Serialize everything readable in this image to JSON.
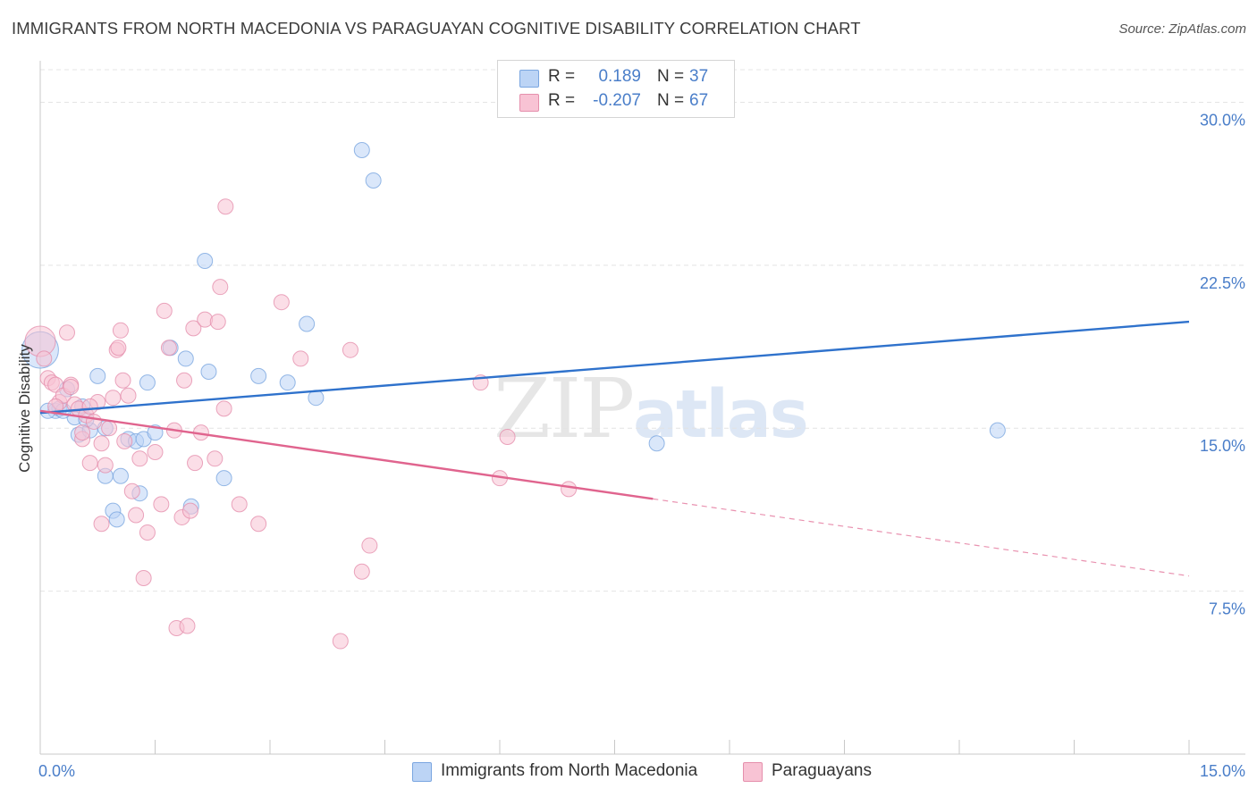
{
  "header": {
    "title": "IMMIGRANTS FROM NORTH MACEDONIA VS PARAGUAYAN COGNITIVE DISABILITY CORRELATION CHART",
    "source": "Source: ZipAtlas.com"
  },
  "watermark": {
    "zip": "ZIP",
    "atlas": "atlas"
  },
  "legend_top": {
    "rows": [
      {
        "r_label": "R =",
        "r_value": "0.189",
        "n_label": "N =",
        "n_value": "37"
      },
      {
        "r_label": "R =",
        "r_value": "-0.207",
        "n_label": "N =",
        "n_value": "67"
      }
    ]
  },
  "legend_bottom": {
    "items": [
      {
        "label": "Immigrants from North Macedonia"
      },
      {
        "label": "Paraguayans"
      }
    ]
  },
  "colors": {
    "blue_fill": "#bcd4f5",
    "blue_stroke": "#7aa6e0",
    "blue_line": "#2f72cc",
    "pink_fill": "#f8c3d4",
    "pink_stroke": "#e58fac",
    "pink_line": "#e0648e",
    "grid": "#e4e4e4",
    "tick_text": "#4a7ec9"
  },
  "chart_data": {
    "type": "scatter",
    "title": "IMMIGRANTS FROM NORTH MACEDONIA VS PARAGUAYAN COGNITIVE DISABILITY CORRELATION CHART",
    "xlabel": "",
    "ylabel": "Cognitive Disability",
    "xlim": [
      0,
      15
    ],
    "ylim": [
      0,
      31.5
    ],
    "x_tick_labels": [
      {
        "value": 0,
        "label": "0.0%"
      },
      {
        "value": 15,
        "label": "15.0%"
      }
    ],
    "x_minor_ticks": [
      1.5,
      3.0,
      4.5,
      6.0,
      7.5,
      9.0,
      10.5,
      12.0,
      13.5
    ],
    "y_ticks": [
      {
        "value": 7.5,
        "label": "7.5%"
      },
      {
        "value": 15.0,
        "label": "15.0%"
      },
      {
        "value": 22.5,
        "label": "22.5%"
      },
      {
        "value": 30.0,
        "label": "30.0%"
      }
    ],
    "grid": true,
    "legend_position": "top-center",
    "series": [
      {
        "name": "Immigrants from North Macedonia",
        "color": "blue",
        "r": 0.189,
        "n": 37,
        "trend": {
          "x0": 0.0,
          "y0": 15.7,
          "x1": 15.0,
          "y1": 19.9,
          "solid_until": 15.0
        },
        "points": [
          [
            0.0,
            18.6,
            2.4
          ],
          [
            0.2,
            15.8,
            1
          ],
          [
            0.25,
            15.9,
            1
          ],
          [
            0.35,
            16.8,
            1
          ],
          [
            0.45,
            15.5,
            1
          ],
          [
            0.5,
            14.7,
            1
          ],
          [
            0.55,
            16.0,
            1
          ],
          [
            0.65,
            14.9,
            1
          ],
          [
            0.75,
            17.4,
            1
          ],
          [
            0.85,
            15.0,
            1
          ],
          [
            0.95,
            11.2,
            1
          ],
          [
            1.0,
            10.8,
            1
          ],
          [
            1.05,
            12.8,
            1
          ],
          [
            1.15,
            14.5,
            1
          ],
          [
            1.25,
            14.4,
            1
          ],
          [
            1.3,
            12.0,
            1
          ],
          [
            1.35,
            14.5,
            1
          ],
          [
            1.4,
            17.1,
            1
          ],
          [
            1.5,
            14.8,
            1
          ],
          [
            0.85,
            12.8,
            1
          ],
          [
            1.7,
            18.7,
            1
          ],
          [
            1.9,
            18.2,
            1
          ],
          [
            1.97,
            11.4,
            1
          ],
          [
            2.15,
            22.7,
            1
          ],
          [
            2.2,
            17.6,
            1
          ],
          [
            2.4,
            12.7,
            1
          ],
          [
            2.85,
            17.4,
            1
          ],
          [
            3.23,
            17.1,
            1
          ],
          [
            3.48,
            19.8,
            1
          ],
          [
            3.6,
            16.4,
            1
          ],
          [
            4.2,
            27.8,
            1
          ],
          [
            4.35,
            26.4,
            1
          ],
          [
            8.05,
            14.3,
            1
          ],
          [
            12.5,
            14.9,
            1
          ],
          [
            0.1,
            15.8,
            1
          ],
          [
            0.6,
            15.4,
            1
          ],
          [
            0.3,
            15.8,
            1
          ]
        ]
      },
      {
        "name": "Paraguayans",
        "color": "pink",
        "r": -0.207,
        "n": 67,
        "trend": {
          "x0": 0.0,
          "y0": 15.8,
          "x1": 15.0,
          "y1": 8.2,
          "solid_until": 8.0
        },
        "points": [
          [
            0.0,
            19.0,
            2.0
          ],
          [
            0.05,
            18.2,
            1
          ],
          [
            0.1,
            17.3,
            1
          ],
          [
            0.15,
            17.1,
            1
          ],
          [
            0.2,
            17.0,
            1
          ],
          [
            0.25,
            16.2,
            1
          ],
          [
            0.3,
            16.5,
            1
          ],
          [
            0.35,
            19.4,
            1
          ],
          [
            0.4,
            17.0,
            1
          ],
          [
            0.45,
            16.1,
            1
          ],
          [
            0.5,
            15.9,
            1
          ],
          [
            0.55,
            14.5,
            1
          ],
          [
            0.6,
            15.6,
            1
          ],
          [
            0.65,
            13.4,
            1
          ],
          [
            0.7,
            15.3,
            1
          ],
          [
            0.75,
            16.2,
            1
          ],
          [
            0.8,
            14.3,
            1
          ],
          [
            0.85,
            13.3,
            1
          ],
          [
            0.9,
            15.0,
            1
          ],
          [
            0.95,
            16.4,
            1
          ],
          [
            1.0,
            18.6,
            1
          ],
          [
            1.02,
            18.7,
            1
          ],
          [
            1.05,
            19.5,
            1
          ],
          [
            1.08,
            17.2,
            1
          ],
          [
            1.1,
            14.4,
            1
          ],
          [
            1.15,
            16.5,
            1
          ],
          [
            1.2,
            12.1,
            1
          ],
          [
            1.25,
            11.0,
            1
          ],
          [
            1.3,
            13.6,
            1
          ],
          [
            1.35,
            8.1,
            1
          ],
          [
            1.4,
            10.2,
            1
          ],
          [
            0.8,
            10.6,
            1
          ],
          [
            1.5,
            13.9,
            1
          ],
          [
            1.58,
            11.5,
            1
          ],
          [
            1.62,
            20.4,
            1
          ],
          [
            1.68,
            18.7,
            1
          ],
          [
            1.75,
            14.9,
            1
          ],
          [
            1.78,
            5.8,
            1
          ],
          [
            1.85,
            10.9,
            1
          ],
          [
            1.88,
            17.2,
            1
          ],
          [
            1.92,
            5.9,
            1
          ],
          [
            1.96,
            11.2,
            1
          ],
          [
            2.0,
            19.6,
            1
          ],
          [
            2.02,
            13.4,
            1
          ],
          [
            2.1,
            14.8,
            1
          ],
          [
            2.15,
            20.0,
            1
          ],
          [
            2.28,
            13.6,
            1
          ],
          [
            2.32,
            19.9,
            1
          ],
          [
            2.35,
            21.5,
            1
          ],
          [
            2.4,
            15.9,
            1
          ],
          [
            2.42,
            25.2,
            1
          ],
          [
            2.6,
            11.5,
            1
          ],
          [
            2.85,
            10.6,
            1
          ],
          [
            3.15,
            20.8,
            1
          ],
          [
            3.4,
            18.2,
            1
          ],
          [
            3.92,
            5.2,
            1
          ],
          [
            4.05,
            18.6,
            1
          ],
          [
            4.2,
            8.4,
            1
          ],
          [
            4.3,
            9.6,
            1
          ],
          [
            5.75,
            17.1,
            1
          ],
          [
            6.0,
            12.7,
            1
          ],
          [
            6.1,
            14.6,
            1
          ],
          [
            6.9,
            12.2,
            1
          ],
          [
            0.4,
            16.9,
            1
          ],
          [
            0.55,
            14.8,
            1
          ],
          [
            0.2,
            16.0,
            1
          ],
          [
            0.65,
            16.0,
            1
          ]
        ]
      }
    ]
  }
}
